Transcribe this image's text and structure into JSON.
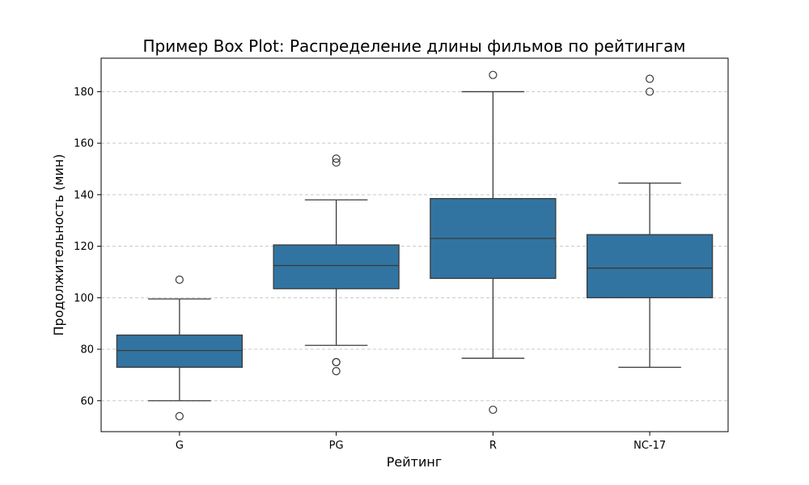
{
  "chart_data": {
    "type": "box",
    "title": "Пример Box Plot: Распределение длины фильмов по рейтингам",
    "xlabel": "Рейтинг",
    "ylabel": "Продолжительность (мин)",
    "categories": [
      "G",
      "PG",
      "R",
      "NC-17"
    ],
    "ylim": [
      48,
      193
    ],
    "yticks": [
      60,
      80,
      100,
      120,
      140,
      160,
      180
    ],
    "grid": "y",
    "box_color": "#3274a1",
    "boxes": [
      {
        "category": "G",
        "whisker_low": 60,
        "q1": 73,
        "median": 79.5,
        "q3": 85.5,
        "whisker_high": 99.5,
        "outliers": [
          54,
          107
        ]
      },
      {
        "category": "PG",
        "whisker_low": 81.5,
        "q1": 103.5,
        "median": 112.5,
        "q3": 120.5,
        "whisker_high": 138,
        "outliers": [
          71.5,
          75,
          75,
          152.5,
          154
        ]
      },
      {
        "category": "R",
        "whisker_low": 76.5,
        "q1": 107.5,
        "median": 123,
        "q3": 138.5,
        "whisker_high": 180,
        "outliers": [
          56.5,
          186.5
        ]
      },
      {
        "category": "NC-17",
        "whisker_low": 73,
        "q1": 100,
        "median": 111.5,
        "q3": 124.5,
        "whisker_high": 144.5,
        "outliers": [
          180,
          185
        ]
      }
    ]
  }
}
